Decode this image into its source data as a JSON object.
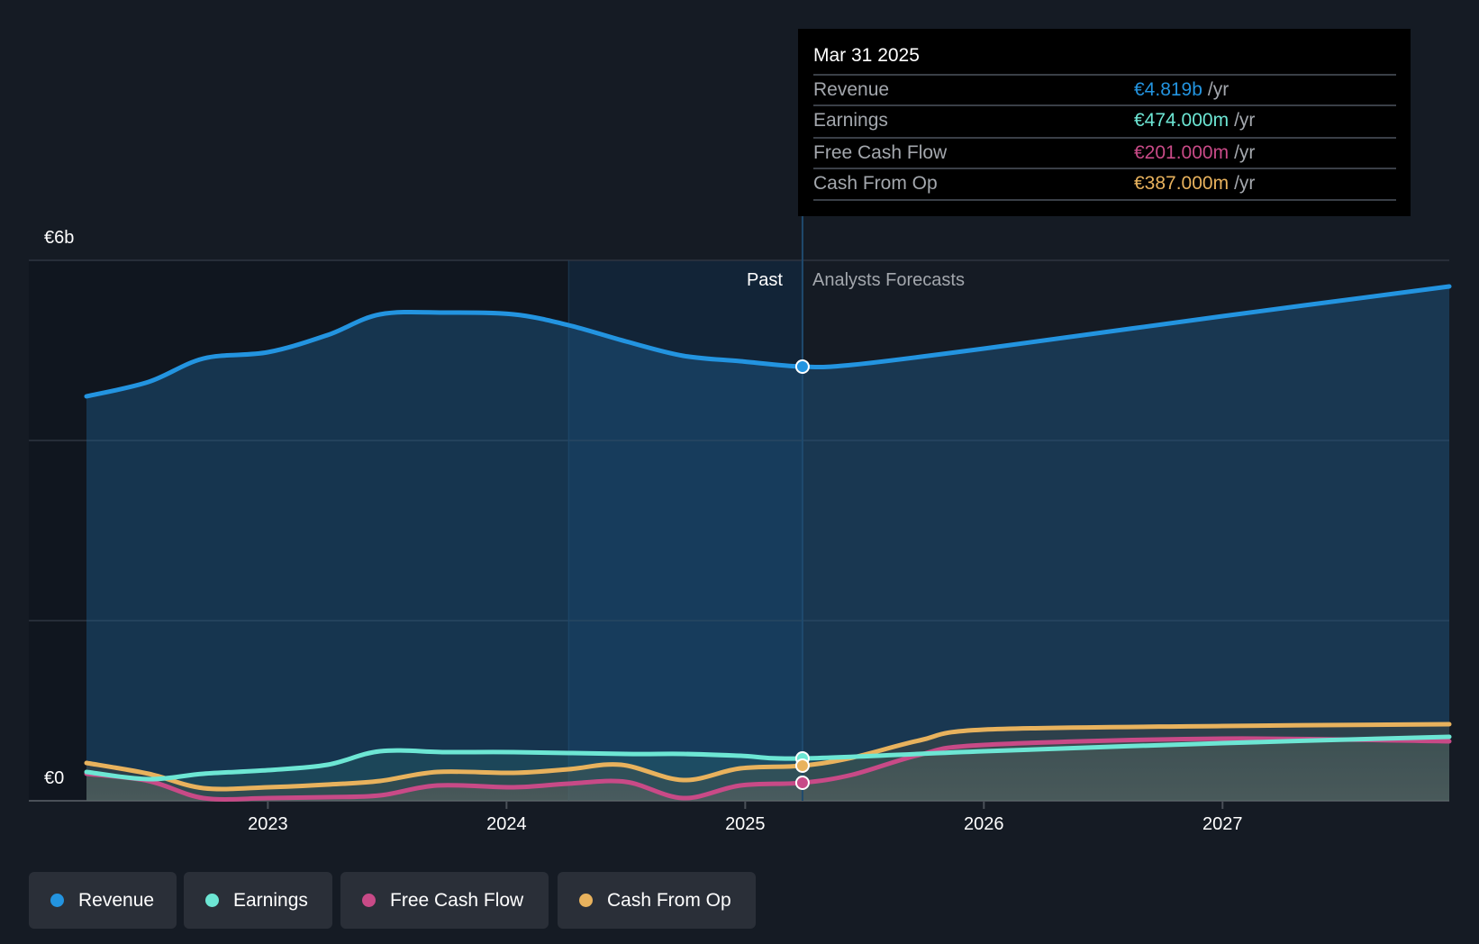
{
  "colors": {
    "revenue": "#2394e0",
    "earnings": "#6de6d4",
    "fcf": "#c84a87",
    "cfo": "#e8b25d",
    "bg": "#151b24"
  },
  "tooltip": {
    "date": "Mar 31 2025",
    "rows": [
      {
        "label": "Revenue",
        "value": "€4.819b",
        "unit": "/yr"
      },
      {
        "label": "Earnings",
        "value": "€474.000m",
        "unit": "/yr"
      },
      {
        "label": "Free Cash Flow",
        "value": "€201.000m",
        "unit": "/yr"
      },
      {
        "label": "Cash From Op",
        "value": "€387.000m",
        "unit": "/yr"
      }
    ]
  },
  "legend": [
    "Revenue",
    "Earnings",
    "Free Cash Flow",
    "Cash From Op"
  ],
  "chart_data": {
    "type": "line",
    "ylabel_top": "€6b",
    "ylabel_bottom": "€0",
    "ylim": [
      0,
      6
    ],
    "xlim": [
      2022.24,
      2027.95
    ],
    "yticks": [
      0,
      2,
      4,
      6
    ],
    "xticks": [
      {
        "v": 2023,
        "label": "2023"
      },
      {
        "v": 2024,
        "label": "2024"
      },
      {
        "v": 2025,
        "label": "2025"
      },
      {
        "v": 2026,
        "label": "2026"
      },
      {
        "v": 2027,
        "label": "2027"
      }
    ],
    "past_label": "Past",
    "forecast_label": "Analysts Forecasts",
    "cursor": 2025.24,
    "past_band_start": 2024.26,
    "series": [
      {
        "key": "revenue",
        "name": "Revenue",
        "points": [
          [
            2022.24,
            4.49
          ],
          [
            2022.5,
            4.65
          ],
          [
            2022.73,
            4.91
          ],
          [
            2023.0,
            4.98
          ],
          [
            2023.25,
            5.17
          ],
          [
            2023.47,
            5.4
          ],
          [
            2023.75,
            5.42
          ],
          [
            2024.03,
            5.4
          ],
          [
            2024.26,
            5.28
          ],
          [
            2024.5,
            5.1
          ],
          [
            2024.74,
            4.94
          ],
          [
            2024.98,
            4.88
          ],
          [
            2025.24,
            4.82
          ],
          [
            2025.45,
            4.84
          ],
          [
            2026.0,
            5.02
          ],
          [
            2027.0,
            5.38
          ],
          [
            2027.95,
            5.71
          ]
        ]
      },
      {
        "key": "earnings",
        "name": "Earnings",
        "points": [
          [
            2022.24,
            0.32
          ],
          [
            2022.5,
            0.24
          ],
          [
            2022.73,
            0.3
          ],
          [
            2023.0,
            0.34
          ],
          [
            2023.25,
            0.4
          ],
          [
            2023.47,
            0.55
          ],
          [
            2023.75,
            0.54
          ],
          [
            2024.03,
            0.54
          ],
          [
            2024.5,
            0.52
          ],
          [
            2024.74,
            0.52
          ],
          [
            2024.98,
            0.5
          ],
          [
            2025.24,
            0.47
          ],
          [
            2026.0,
            0.55
          ],
          [
            2027.0,
            0.64
          ],
          [
            2027.95,
            0.71
          ]
        ]
      },
      {
        "key": "fcf",
        "name": "Free Cash Flow",
        "points": [
          [
            2022.24,
            0.3
          ],
          [
            2022.5,
            0.22
          ],
          [
            2022.73,
            0.03
          ],
          [
            2023.0,
            0.03
          ],
          [
            2023.25,
            0.04
          ],
          [
            2023.47,
            0.06
          ],
          [
            2023.71,
            0.17
          ],
          [
            2024.03,
            0.15
          ],
          [
            2024.26,
            0.19
          ],
          [
            2024.5,
            0.21
          ],
          [
            2024.74,
            0.03
          ],
          [
            2024.98,
            0.17
          ],
          [
            2025.24,
            0.2
          ],
          [
            2025.45,
            0.29
          ],
          [
            2025.73,
            0.51
          ],
          [
            2026.0,
            0.62
          ],
          [
            2027.0,
            0.69
          ],
          [
            2027.95,
            0.66
          ]
        ]
      },
      {
        "key": "cfo",
        "name": "Cash From Op",
        "points": [
          [
            2022.24,
            0.42
          ],
          [
            2022.5,
            0.3
          ],
          [
            2022.73,
            0.14
          ],
          [
            2023.0,
            0.15
          ],
          [
            2023.25,
            0.18
          ],
          [
            2023.47,
            0.22
          ],
          [
            2023.71,
            0.32
          ],
          [
            2024.03,
            0.31
          ],
          [
            2024.26,
            0.35
          ],
          [
            2024.48,
            0.4
          ],
          [
            2024.74,
            0.23
          ],
          [
            2024.98,
            0.36
          ],
          [
            2025.24,
            0.39
          ],
          [
            2025.45,
            0.48
          ],
          [
            2025.73,
            0.67
          ],
          [
            2026.0,
            0.79
          ],
          [
            2027.0,
            0.83
          ],
          [
            2027.95,
            0.85
          ]
        ]
      }
    ]
  }
}
